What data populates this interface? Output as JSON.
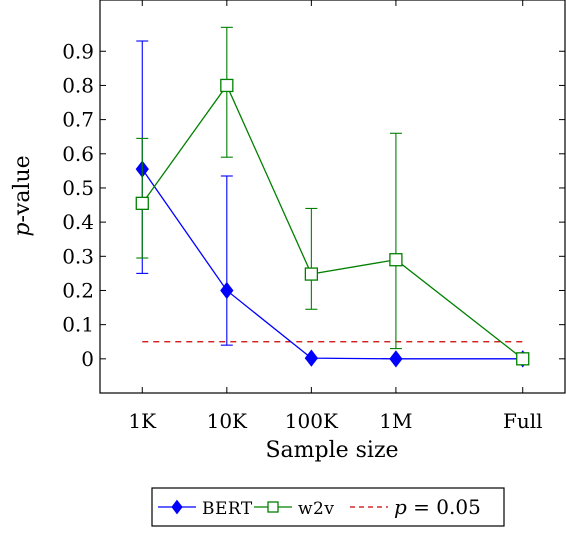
{
  "chart_data": {
    "type": "line",
    "title": "",
    "xlabel": "Sample size",
    "ylabel": "p-value",
    "ylabel_italic": "p",
    "ylabel_rest": "-value",
    "categories": [
      "1K",
      "10K",
      "100K",
      "1M",
      "Full"
    ],
    "x_positions": [
      1,
      2,
      3,
      4,
      5.5
    ],
    "xlim": [
      0.5,
      6
    ],
    "ylim": [
      -0.1,
      1.05
    ],
    "yticks": [
      0,
      0.1,
      0.2,
      0.3,
      0.4,
      0.5,
      0.6,
      0.7,
      0.8,
      0.9
    ],
    "ytick_labels": [
      "0",
      "0.1",
      "0.2",
      "0.3",
      "0.4",
      "0.5",
      "0.6",
      "0.7",
      "0.8",
      "0.9"
    ],
    "grid": false,
    "legend_placement": "below",
    "series": [
      {
        "name": "BERT",
        "color": "#0000ff",
        "marker": "diamond",
        "values": [
          0.555,
          0.2,
          0.002,
          0.0,
          0.0
        ],
        "err_low": [
          0.25,
          0.04,
          0.0,
          0.0,
          0.0
        ],
        "err_high": [
          0.93,
          0.535,
          0.002,
          0.0,
          0.0
        ]
      },
      {
        "name": "w2v",
        "color": "#008000",
        "marker": "square",
        "values": [
          0.455,
          0.8,
          0.248,
          0.29,
          0.0
        ],
        "err_low": [
          0.295,
          0.59,
          0.145,
          0.03,
          0.0
        ],
        "err_high": [
          0.645,
          0.97,
          0.44,
          0.66,
          0.0
        ]
      }
    ],
    "reference_line": {
      "y": 0.05,
      "color": "#cc0000",
      "label_italic": "p",
      "label_rest": " = 0.05"
    }
  }
}
